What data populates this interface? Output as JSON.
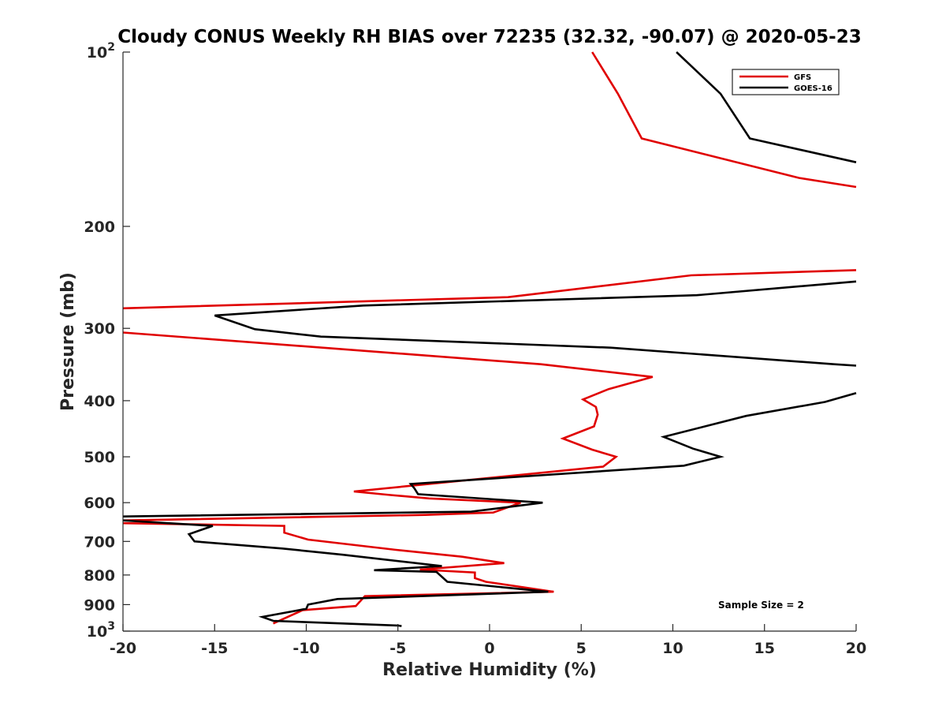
{
  "chart_data": {
    "type": "line",
    "title": "Cloudy CONUS Weekly RH BIAS over 72235 (32.32, -90.07) @ 2020-05-23",
    "xlabel": "Relative Humidity (%)",
    "ylabel": "Pressure (mb)",
    "xlim": [
      -20,
      20
    ],
    "ylim": [
      100,
      1000
    ],
    "y_scale": "log",
    "y_reversed": true,
    "x_ticks": [
      -20,
      -15,
      -10,
      -5,
      0,
      5,
      10,
      15,
      20
    ],
    "x_tick_labels": [
      "-20",
      "-15",
      "-10",
      "-5",
      "0",
      "5",
      "10",
      "15",
      "20"
    ],
    "y_ticks": [
      100,
      200,
      300,
      400,
      500,
      600,
      700,
      800,
      900,
      1000
    ],
    "y_tick_labels": [
      {
        "base": "10",
        "exp": "2"
      },
      {
        "base": "200"
      },
      {
        "base": "300"
      },
      {
        "base": "400"
      },
      {
        "base": "500"
      },
      {
        "base": "600"
      },
      {
        "base": "700"
      },
      {
        "base": "800"
      },
      {
        "base": "900"
      },
      {
        "base": "10",
        "exp": "3"
      }
    ],
    "legend": {
      "position": "top-right"
    },
    "annotation": "Sample Size = 2",
    "series": [
      {
        "name": "GFS",
        "color": "#e00000",
        "points": [
          [
            5.6,
            100
          ],
          [
            7.0,
            118
          ],
          [
            8.3,
            141
          ],
          [
            16.9,
            165
          ],
          [
            20,
            171
          ],
          [
            null,
            null
          ],
          [
            20,
            238
          ],
          [
            11.0,
            243
          ],
          [
            1.0,
            265
          ],
          [
            -20,
            277
          ],
          [
            null,
            null
          ],
          [
            -20,
            305
          ],
          [
            2.8,
            346
          ],
          [
            8.9,
            364
          ],
          [
            6.5,
            382
          ],
          [
            5.1,
            398
          ],
          [
            5.8,
            410
          ],
          [
            5.9,
            423
          ],
          [
            5.7,
            443
          ],
          [
            4.0,
            465
          ],
          [
            5.6,
            486
          ],
          [
            6.9,
            500
          ],
          [
            6.2,
            520
          ],
          [
            -7.4,
            574
          ],
          [
            -5.4,
            582
          ],
          [
            -3.3,
            590
          ],
          [
            1.7,
            600
          ],
          [
            0.2,
            624
          ],
          [
            -3.5,
            630
          ],
          [
            -20,
            644
          ],
          [
            null,
            null
          ],
          [
            -20,
            651
          ],
          [
            -11.2,
            658
          ],
          [
            -11.2,
            676
          ],
          [
            -9.9,
            695
          ],
          [
            -5.1,
            724
          ],
          [
            -1.5,
            744
          ],
          [
            0.8,
            763
          ],
          [
            -3.8,
            783
          ],
          [
            -0.8,
            792
          ],
          [
            -0.8,
            810
          ],
          [
            -0.2,
            822
          ],
          [
            3.5,
            855
          ],
          [
            -6.8,
            870
          ],
          [
            -7.3,
            905
          ],
          [
            -10.2,
            920
          ],
          [
            -11.8,
            970
          ]
        ]
      },
      {
        "name": "GOES-16",
        "color": "#000000",
        "points": [
          [
            10.2,
            100
          ],
          [
            12.6,
            118
          ],
          [
            14.2,
            141
          ],
          [
            20,
            155
          ],
          [
            null,
            null
          ],
          [
            20,
            249
          ],
          [
            11.3,
            263
          ],
          [
            -6.9,
            274
          ],
          [
            -15.0,
            285
          ],
          [
            -12.8,
            301
          ],
          [
            -9.2,
            310
          ],
          [
            6.6,
            324
          ],
          [
            18.8,
            346
          ],
          [
            20,
            348
          ],
          [
            null,
            null
          ],
          [
            20,
            388
          ],
          [
            18.3,
            402
          ],
          [
            14.0,
            425
          ],
          [
            9.5,
            462
          ],
          [
            11.1,
            484
          ],
          [
            12.6,
            500
          ],
          [
            10.6,
            518
          ],
          [
            -4.3,
            557
          ],
          [
            -4.1,
            567
          ],
          [
            -3.9,
            580
          ],
          [
            2.9,
            600
          ],
          [
            -1.0,
            622
          ],
          [
            -20,
            634
          ],
          [
            null,
            null
          ],
          [
            -20,
            644
          ],
          [
            -15.1,
            658
          ],
          [
            -16.4,
            680
          ],
          [
            -16.1,
            700
          ],
          [
            -11.3,
            720
          ],
          [
            -8.0,
            738
          ],
          [
            -2.6,
            772
          ],
          [
            -6.3,
            785
          ],
          [
            -2.9,
            790
          ],
          [
            -2.3,
            822
          ],
          [
            3.2,
            855
          ],
          [
            -8.3,
            880
          ],
          [
            -9.9,
            900
          ],
          [
            -10.0,
            915
          ],
          [
            -12.4,
            945
          ],
          [
            -11.8,
            960
          ],
          [
            -5.0,
            978
          ],
          [
            -4.8,
            980
          ]
        ]
      }
    ]
  }
}
